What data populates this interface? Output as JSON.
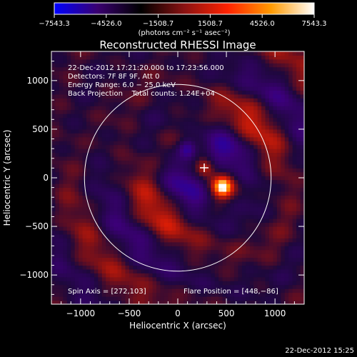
{
  "colorbar": {
    "tick_labels": [
      "−7543.3",
      "−4526.0",
      "−1508.7",
      "1508.7",
      "4526.0",
      "7543.3"
    ],
    "tick_values": [
      -7543.3,
      -4526.0,
      -1508.7,
      1508.7,
      4526.0,
      7543.3
    ],
    "range": [
      -7543.3,
      7543.3
    ],
    "units_label": "(photons cm⁻² s⁻¹ asec⁻²)",
    "colors": [
      "#0000ff",
      "#3a0070",
      "#000000",
      "#8a1212",
      "#ff2200",
      "#ff9a00",
      "#ffffff"
    ]
  },
  "chart_data": {
    "type": "heatmap",
    "title": "Reconstructed RHESSI Image",
    "xlabel": "Heliocentric X (arcsec)",
    "ylabel": "Heliocentric Y (arcsec)",
    "xlim": [
      -1300,
      1300
    ],
    "ylim": [
      -1300,
      1300
    ],
    "x_ticks": [
      -1000,
      -500,
      0,
      500,
      1000
    ],
    "y_ticks": [
      -1000,
      -500,
      0,
      500,
      1000
    ],
    "x_tick_labels": [
      "−1000",
      "−500",
      "0",
      "500",
      "1000"
    ],
    "y_tick_labels": [
      "−1000",
      "−500",
      "0",
      "500",
      "1000"
    ],
    "solar_limb_radius": 960,
    "flare_position": [
      448,
      -86
    ],
    "spin_axis": [
      272,
      103
    ],
    "peaks": [
      {
        "x": 460,
        "y": -90,
        "polarity": "positive",
        "strength": 1.0
      },
      {
        "x": 280,
        "y": 110,
        "polarity": "positive",
        "strength": 0.6
      },
      {
        "x": 100,
        "y": 300,
        "polarity": "negative",
        "strength": 0.7
      }
    ],
    "info_lines": [
      "22-Dec-2012 17:21:20.000 to 17:23:56.000",
      "Detectors: 7F 8F 9F, Att 0",
      "Energy Range: 6.0 − 25.0 keV",
      "Back Projection    Total counts: 1.24E+04"
    ],
    "spin_axis_label": "Spin Axis = [272,103]",
    "flare_position_label": "Flare Position = [448,−86]"
  },
  "footer": {
    "timestamp": "22-Dec-2012 15:25"
  }
}
